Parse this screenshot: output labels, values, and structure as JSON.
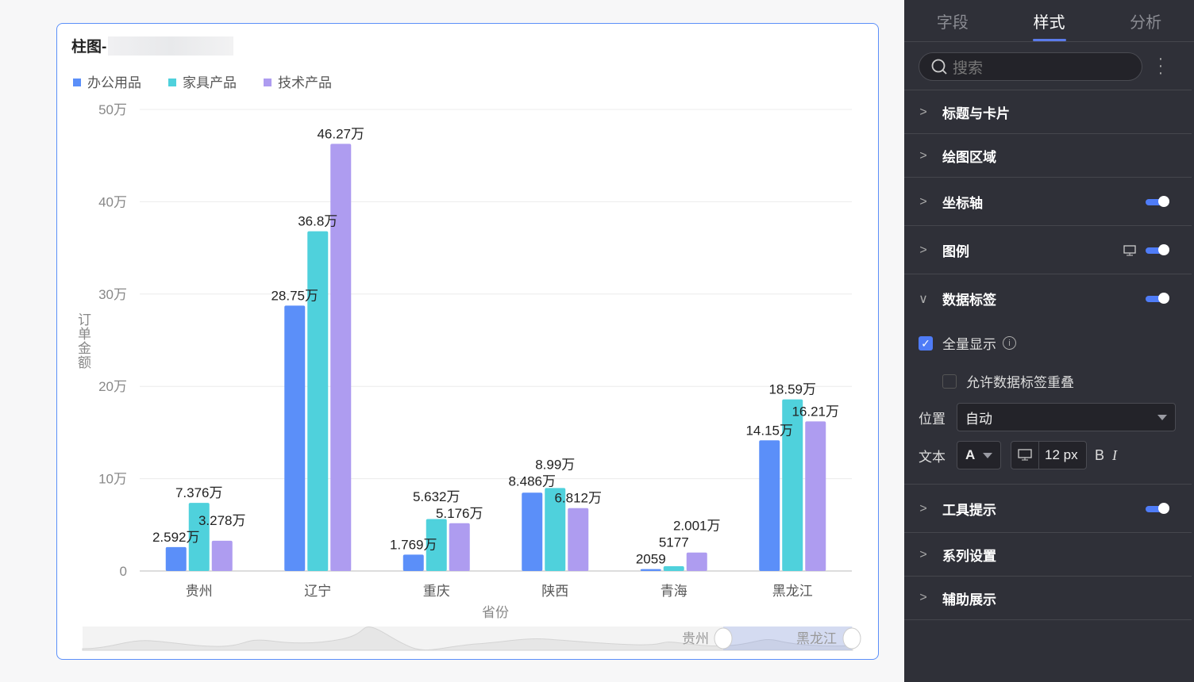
{
  "card": {
    "title_prefix": "柱图-"
  },
  "legend": [
    {
      "label": "办公用品",
      "color": "#5b8ff9"
    },
    {
      "label": "家具产品",
      "color": "#4fd1dc"
    },
    {
      "label": "技术产品",
      "color": "#ae9cf0"
    }
  ],
  "chart_data": {
    "type": "bar",
    "categories": [
      "贵州",
      "辽宁",
      "重庆",
      "陕西",
      "青海",
      "黑龙江"
    ],
    "series": [
      {
        "name": "办公用品",
        "values": [
          25920,
          287500,
          17690,
          84860,
          2059,
          141500
        ],
        "labels": [
          "2.592万",
          "28.75万",
          "1.769万",
          "8.486万",
          "2059",
          "14.15万"
        ]
      },
      {
        "name": "家具产品",
        "values": [
          73760,
          368000,
          56320,
          89900,
          5177,
          185900
        ],
        "labels": [
          "7.376万",
          "36.8万",
          "5.632万",
          "8.99万",
          "5177",
          "18.59万"
        ]
      },
      {
        "name": "技术产品",
        "values": [
          32780,
          462700,
          51760,
          68120,
          20010,
          162100
        ],
        "labels": [
          "3.278万",
          "46.27万",
          "5.176万",
          "6.812万",
          "2.001万",
          "16.21万"
        ]
      }
    ],
    "yticks": [
      "0",
      "10万",
      "20万",
      "30万",
      "40万",
      "50万"
    ],
    "ylim": [
      0,
      500000
    ],
    "xlabel": "省份",
    "ylabel": "订单金额",
    "grid": true,
    "legend_position": "top-left",
    "slider": {
      "start": "贵州",
      "end": "黑龙江"
    }
  },
  "panel": {
    "tabs": [
      "字段",
      "样式",
      "分析"
    ],
    "active_tab": 1,
    "search_placeholder": "搜索",
    "sections": [
      "标题与卡片",
      "绘图区域",
      "坐标轴",
      "图例",
      "数据标签",
      "工具提示",
      "系列设置",
      "辅助展示"
    ],
    "show_all": "全量显示",
    "allow_overlap": "允许数据标签重叠",
    "position_label": "位置",
    "position_value": "自动",
    "text_label": "文本",
    "font_letter": "A",
    "font_size": "12 px",
    "bold": "B",
    "italic": "I"
  }
}
